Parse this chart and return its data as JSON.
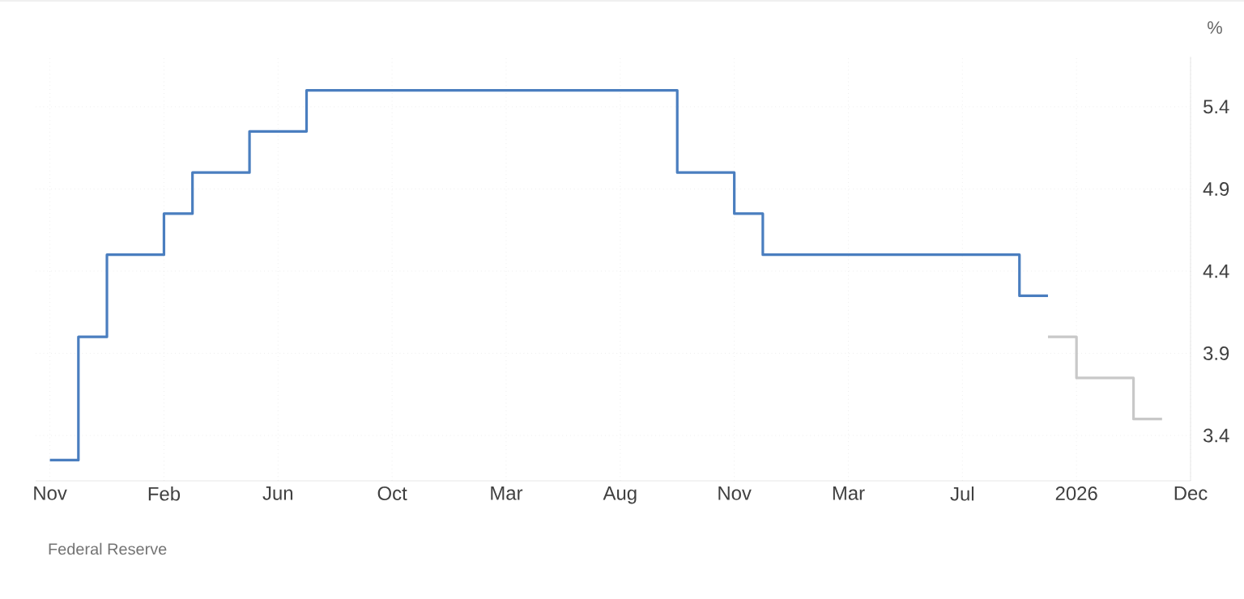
{
  "chart_data": {
    "type": "step",
    "ylabel": "%",
    "annotations": [
      "Federal Reserve"
    ],
    "categories": [
      "Nov",
      null,
      null,
      null,
      "Feb",
      null,
      null,
      null,
      "Jun",
      null,
      null,
      null,
      "Oct",
      null,
      null,
      null,
      "Mar",
      null,
      null,
      null,
      "Aug",
      null,
      null,
      null,
      "Nov",
      null,
      null,
      null,
      "Mar",
      null,
      null,
      null,
      "Jul",
      null,
      null,
      null,
      "2026",
      null,
      null,
      null,
      "Dec"
    ],
    "series": [
      {
        "color": "#4a7ebf",
        "values": [
          3.25,
          4.0,
          4.5,
          4.5,
          4.75,
          5.0,
          5.0,
          5.25,
          5.25,
          5.5,
          5.5,
          5.5,
          5.5,
          5.5,
          5.5,
          5.5,
          5.5,
          5.5,
          5.5,
          5.5,
          5.5,
          5.5,
          5.0,
          5.0,
          4.75,
          4.5,
          4.5,
          4.5,
          4.5,
          4.5,
          4.5,
          4.5,
          4.5,
          4.5,
          4.25,
          4.25,
          null,
          null,
          null,
          null,
          null
        ]
      },
      {
        "color": "#c8c8c8",
        "values": [
          null,
          null,
          null,
          null,
          null,
          null,
          null,
          null,
          null,
          null,
          null,
          null,
          null,
          null,
          null,
          null,
          null,
          null,
          null,
          null,
          null,
          null,
          null,
          null,
          null,
          null,
          null,
          null,
          null,
          null,
          null,
          null,
          null,
          null,
          null,
          4.0,
          3.75,
          3.75,
          3.5,
          3.5,
          null
        ]
      }
    ],
    "ylim": [
      3.124,
      5.705
    ],
    "yticks": [
      3.4,
      3.9,
      4.4,
      4.9,
      5.4
    ],
    "grid": true
  }
}
